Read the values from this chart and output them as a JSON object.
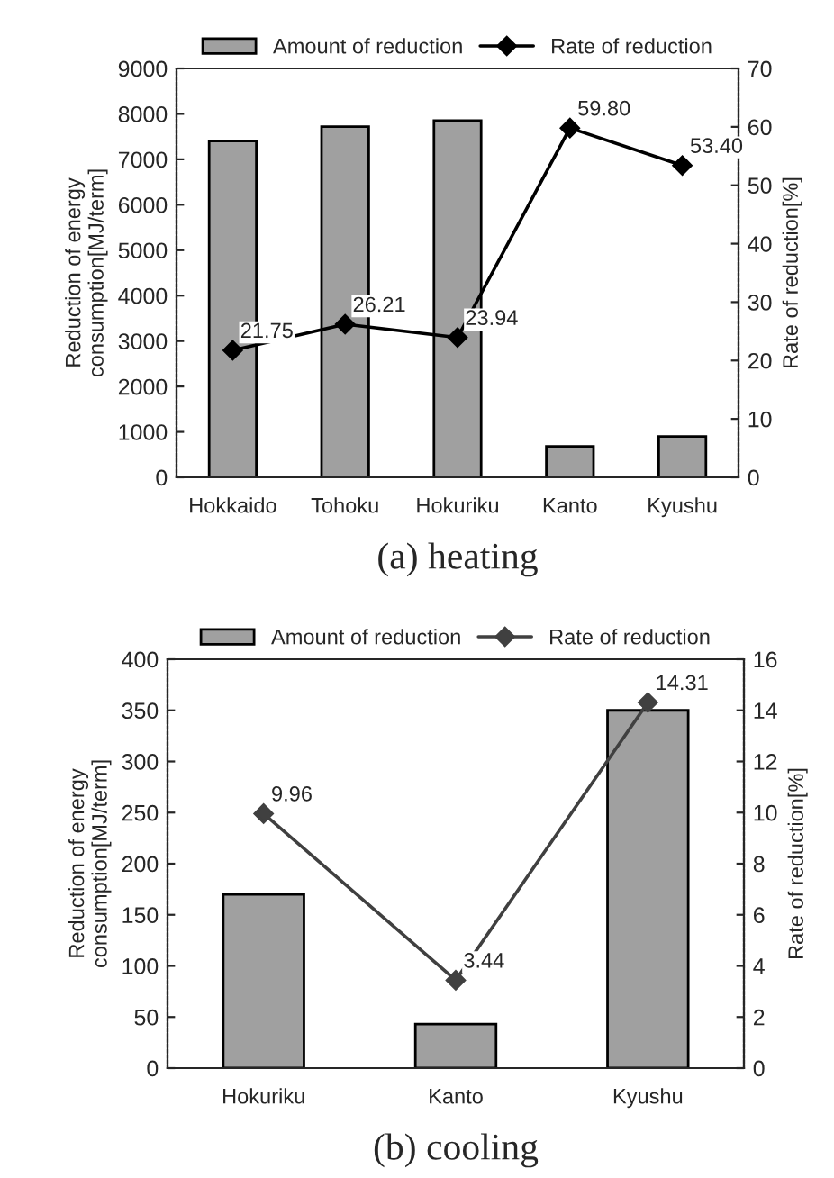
{
  "chart_data": [
    {
      "type": "bar",
      "title": "(a) heating",
      "ylabel": "Reduction of energy\nconsumption[MJ/term]",
      "y2label": "Rate of reduction[%]",
      "categories": [
        "Hokkaido",
        "Tohoku",
        "Hokuriku",
        "Kanto",
        "Kyushu"
      ],
      "series": [
        {
          "name": "Amount of reduction",
          "type": "bar",
          "color": "#a0a0a0",
          "values": [
            7400,
            7720,
            7850,
            680,
            900
          ]
        },
        {
          "name": "Rate of reduction",
          "type": "line",
          "axis": "y2",
          "color": "#000000",
          "values": [
            21.75,
            26.21,
            23.94,
            59.8,
            53.4
          ],
          "value_labels": [
            "21.75",
            "26.21",
            "23.94",
            "59.80",
            "53.40"
          ]
        }
      ],
      "ylim": [
        0,
        9000
      ],
      "yticks": [
        0,
        1000,
        2000,
        3000,
        4000,
        5000,
        6000,
        7000,
        8000,
        9000
      ],
      "y2lim": [
        0,
        70
      ],
      "y2ticks": [
        0,
        10,
        20,
        30,
        40,
        50,
        60,
        70
      ],
      "legend": "top",
      "marker": "diamond",
      "line_style": "solid",
      "grid": false
    },
    {
      "type": "bar",
      "title": "(b) cooling",
      "ylabel": "Reduction of energy\nconsumption[MJ/term]",
      "y2label": "Rate of reduction[%]",
      "categories": [
        "Hokuriku",
        "Kanto",
        "Kyushu"
      ],
      "series": [
        {
          "name": "Amount of reduction",
          "type": "bar",
          "color": "#a0a0a0",
          "values": [
            170,
            43,
            350
          ]
        },
        {
          "name": "Rate of reduction",
          "type": "line",
          "axis": "y2",
          "color": "#404040",
          "values": [
            9.96,
            3.44,
            14.31
          ],
          "value_labels": [
            "9.96",
            "3.44",
            "14.31"
          ]
        }
      ],
      "ylim": [
        0,
        400
      ],
      "yticks": [
        0,
        50,
        100,
        150,
        200,
        250,
        300,
        350,
        400
      ],
      "y2lim": [
        0,
        16
      ],
      "y2ticks": [
        0,
        2,
        4,
        6,
        8,
        10,
        12,
        14,
        16
      ],
      "legend": "top",
      "marker": "diamond",
      "line_style": "solid",
      "grid": false
    }
  ]
}
